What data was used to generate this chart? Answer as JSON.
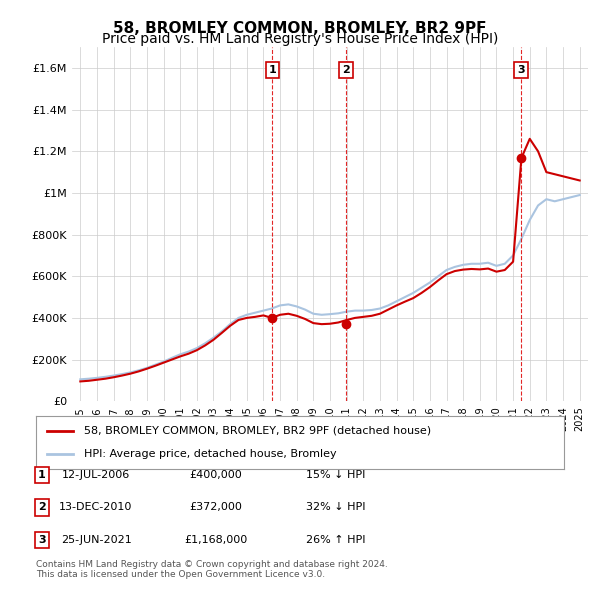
{
  "title": "58, BROMLEY COMMON, BROMLEY, BR2 9PF",
  "subtitle": "Price paid vs. HM Land Registry's House Price Index (HPI)",
  "title_fontsize": 11,
  "subtitle_fontsize": 10,
  "background_color": "#ffffff",
  "plot_bg_color": "#ffffff",
  "grid_color": "#cccccc",
  "hpi_color": "#aac4e0",
  "price_color": "#cc0000",
  "ylim": [
    0,
    1700000
  ],
  "yticks": [
    0,
    200000,
    400000,
    600000,
    800000,
    1000000,
    1200000,
    1400000,
    1600000
  ],
  "ytick_labels": [
    "£0",
    "£200K",
    "£400K",
    "£600K",
    "£800K",
    "£1M",
    "£1.2M",
    "£1.4M",
    "£1.6M"
  ],
  "sales": [
    {
      "x": 2006.54,
      "price": 400000,
      "label": "1"
    },
    {
      "x": 2010.96,
      "price": 372000,
      "label": "2"
    },
    {
      "x": 2021.48,
      "price": 1168000,
      "label": "3"
    }
  ],
  "sale_box_color": "#cc0000",
  "vline_color": "#dd0000",
  "legend_entries": [
    "58, BROMLEY COMMON, BROMLEY, BR2 9PF (detached house)",
    "HPI: Average price, detached house, Bromley"
  ],
  "table_rows": [
    {
      "num": "1",
      "date": "12-JUL-2006",
      "price": "£400,000",
      "hpi": "15% ↓ HPI"
    },
    {
      "num": "2",
      "date": "13-DEC-2010",
      "price": "£372,000",
      "hpi": "32% ↓ HPI"
    },
    {
      "num": "3",
      "date": "25-JUN-2021",
      "price": "£1,168,000",
      "hpi": "26% ↑ HPI"
    }
  ],
  "footer": "Contains HM Land Registry data © Crown copyright and database right 2024.\nThis data is licensed under the Open Government Licence v3.0.",
  "hpi_data_x": [
    1995,
    1995.5,
    1996,
    1996.5,
    1997,
    1997.5,
    1998,
    1998.5,
    1999,
    1999.5,
    2000,
    2000.5,
    2001,
    2001.5,
    2002,
    2002.5,
    2003,
    2003.5,
    2004,
    2004.5,
    2005,
    2005.5,
    2006,
    2006.5,
    2007,
    2007.5,
    2008,
    2008.5,
    2009,
    2009.5,
    2010,
    2010.5,
    2011,
    2011.5,
    2012,
    2012.5,
    2013,
    2013.5,
    2014,
    2014.5,
    2015,
    2015.5,
    2016,
    2016.5,
    2017,
    2017.5,
    2018,
    2018.5,
    2019,
    2019.5,
    2020,
    2020.5,
    2021,
    2021.5,
    2022,
    2022.5,
    2023,
    2023.5,
    2024,
    2024.5,
    2025
  ],
  "hpi_data_y": [
    105000,
    108000,
    112000,
    117000,
    123000,
    130000,
    138000,
    148000,
    160000,
    175000,
    190000,
    208000,
    225000,
    238000,
    255000,
    278000,
    305000,
    335000,
    370000,
    400000,
    415000,
    425000,
    435000,
    445000,
    460000,
    465000,
    455000,
    440000,
    420000,
    415000,
    418000,
    422000,
    430000,
    435000,
    435000,
    438000,
    445000,
    460000,
    480000,
    500000,
    520000,
    545000,
    570000,
    600000,
    630000,
    645000,
    655000,
    660000,
    660000,
    665000,
    650000,
    660000,
    700000,
    780000,
    870000,
    940000,
    970000,
    960000,
    970000,
    980000,
    990000
  ],
  "price_data_x": [
    1995,
    1995.5,
    1996,
    1996.5,
    1997,
    1997.5,
    1998,
    1998.5,
    1999,
    1999.5,
    2000,
    2000.5,
    2001,
    2001.5,
    2002,
    2002.5,
    2003,
    2003.5,
    2004,
    2004.5,
    2005,
    2005.5,
    2006,
    2006.5,
    2007,
    2007.5,
    2008,
    2008.5,
    2009,
    2009.5,
    2010,
    2010.5,
    2011,
    2011.5,
    2012,
    2012.5,
    2013,
    2013.5,
    2014,
    2014.5,
    2015,
    2015.5,
    2016,
    2016.5,
    2017,
    2017.5,
    2018,
    2018.5,
    2019,
    2019.5,
    2020,
    2020.5,
    2021,
    2021.5,
    2022,
    2022.5,
    2023,
    2023.5,
    2024,
    2024.5,
    2025
  ],
  "price_data_y": [
    95000,
    98000,
    103000,
    108000,
    115000,
    123000,
    132000,
    143000,
    156000,
    170000,
    185000,
    200000,
    215000,
    228000,
    245000,
    268000,
    295000,
    328000,
    362000,
    390000,
    400000,
    405000,
    412000,
    400000,
    415000,
    420000,
    410000,
    395000,
    375000,
    370000,
    372000,
    378000,
    390000,
    400000,
    405000,
    410000,
    420000,
    440000,
    460000,
    478000,
    495000,
    520000,
    548000,
    580000,
    610000,
    625000,
    632000,
    635000,
    633000,
    637000,
    622000,
    630000,
    670000,
    1168000,
    1260000,
    1200000,
    1100000,
    1090000,
    1080000,
    1070000,
    1060000
  ]
}
